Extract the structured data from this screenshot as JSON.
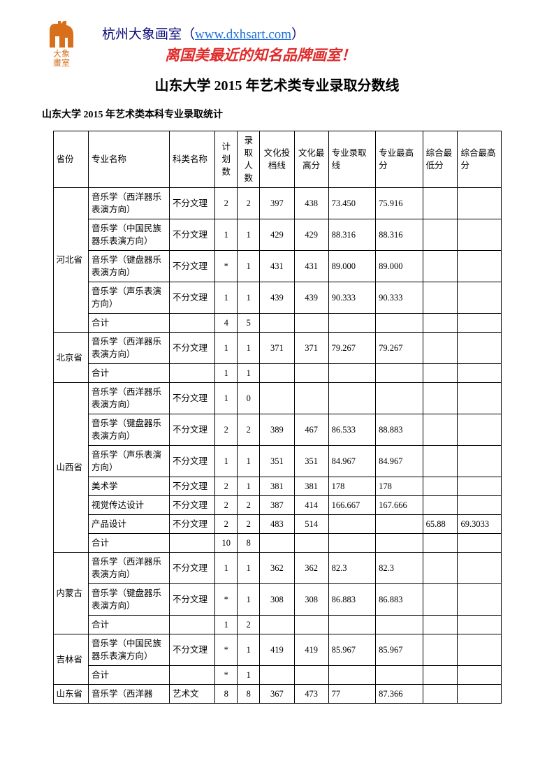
{
  "logo_text1": "大象",
  "logo_text2": "畫室",
  "logo_color": "#d86f1a",
  "header_line1_pre": "杭州大象画室（",
  "header_line1_link": "www.dxhsart.com",
  "header_line1_post": "）",
  "header_line2": "离国美最近的知名品牌画室！",
  "title": "山东大学 2015 年艺术类专业录取分数线",
  "subtitle": "山东大学 2015 年艺术类本科专业录取统计",
  "columns": [
    "省份",
    "专业名称",
    "科类名称",
    "计划数",
    "录取人数",
    "文化投档线",
    "文化最高分",
    "专业录取线",
    "专业最高分",
    "综合最低分",
    "综合最高分"
  ],
  "groups": [
    {
      "province": "河北省",
      "rows": [
        [
          "音乐学（西洋器乐表演方向）",
          "不分文理",
          "2",
          "2",
          "397",
          "438",
          "73.450",
          "75.916",
          "",
          ""
        ],
        [
          "音乐学（中国民族器乐表演方向）",
          "不分文理",
          "1",
          "1",
          "429",
          "429",
          "88.316",
          "88.316",
          "",
          ""
        ],
        [
          "音乐学（键盘器乐表演方向）",
          "不分文理",
          "*",
          "1",
          "431",
          "431",
          "89.000",
          "89.000",
          "",
          ""
        ],
        [
          "音乐学（声乐表演方向）",
          "不分文理",
          "1",
          "1",
          "439",
          "439",
          "90.333",
          "90.333",
          "",
          ""
        ],
        [
          "合计",
          "",
          "4",
          "5",
          "",
          "",
          "",
          "",
          "",
          ""
        ]
      ]
    },
    {
      "province": "北京省",
      "rows": [
        [
          "音乐学（西洋器乐表演方向）",
          "不分文理",
          "1",
          "1",
          "371",
          "371",
          "79.267",
          "79.267",
          "",
          ""
        ],
        [
          "合计",
          "",
          "1",
          "1",
          "",
          "",
          "",
          "",
          "",
          ""
        ]
      ]
    },
    {
      "province": "山西省",
      "rows": [
        [
          "音乐学（西洋器乐表演方向）",
          "不分文理",
          "1",
          "0",
          "",
          "",
          "",
          "",
          "",
          ""
        ],
        [
          "音乐学（键盘器乐表演方向）",
          "不分文理",
          "2",
          "2",
          "389",
          "467",
          "86.533",
          "88.883",
          "",
          ""
        ],
        [
          "音乐学（声乐表演方向）",
          "不分文理",
          "1",
          "1",
          "351",
          "351",
          "84.967",
          "84.967",
          "",
          ""
        ],
        [
          "美术学",
          "不分文理",
          "2",
          "1",
          "381",
          "381",
          "178",
          "178",
          "",
          ""
        ],
        [
          "视觉传达设计",
          "不分文理",
          "2",
          "2",
          "387",
          "414",
          "166.667",
          "167.666",
          "",
          ""
        ],
        [
          "产品设计",
          "不分文理",
          "2",
          "2",
          "483",
          "514",
          "",
          "",
          "65.88",
          "69.3033"
        ],
        [
          "合计",
          "",
          "10",
          "8",
          "",
          "",
          "",
          "",
          "",
          ""
        ]
      ]
    },
    {
      "province": "内蒙古",
      "rows": [
        [
          "音乐学（西洋器乐表演方向）",
          "不分文理",
          "1",
          "1",
          "362",
          "362",
          "82.3",
          "82.3",
          "",
          ""
        ],
        [
          "音乐学（键盘器乐表演方向）",
          "不分文理",
          "*",
          "1",
          "308",
          "308",
          "86.883",
          "86.883",
          "",
          ""
        ],
        [
          "合计",
          "",
          "1",
          "2",
          "",
          "",
          "",
          "",
          "",
          ""
        ]
      ]
    },
    {
      "province": "吉林省",
      "rows": [
        [
          "音乐学（中国民族器乐表演方向）",
          "不分文理",
          "*",
          "1",
          "419",
          "419",
          "85.967",
          "85.967",
          "",
          ""
        ],
        [
          "合计",
          "",
          "*",
          "1",
          "",
          "",
          "",
          "",
          "",
          ""
        ]
      ]
    },
    {
      "province": "山东省",
      "rows": [
        [
          "音乐学（西洋器",
          "艺术文",
          "8",
          "8",
          "367",
          "473",
          "77",
          "87.366",
          "",
          ""
        ]
      ]
    }
  ]
}
